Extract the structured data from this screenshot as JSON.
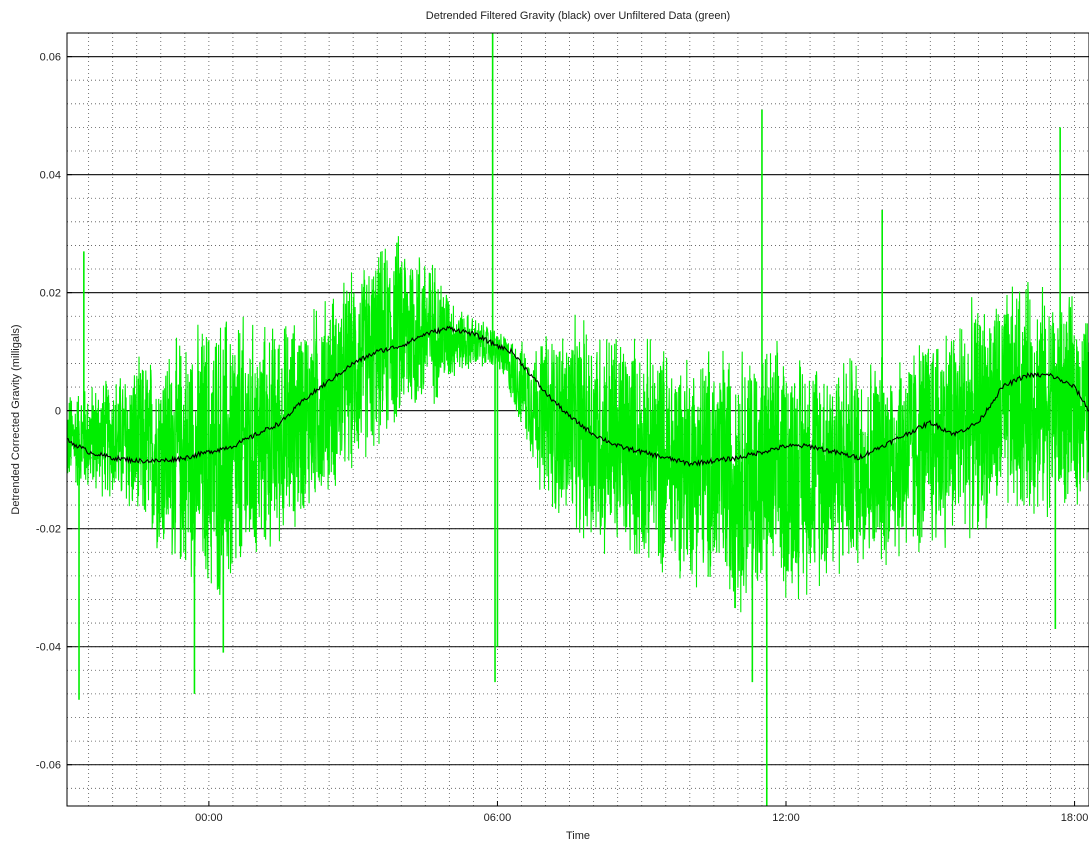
{
  "chart_data": {
    "type": "line",
    "title": "Detrended Filtered Gravity (black) over Unfiltered Data (green)",
    "xlabel": "Time",
    "ylabel": "Detrended Corrected Gravity (milligals)",
    "x_unit": "hours (relative to 00:00)",
    "xlim": [
      -2.95,
      18.3
    ],
    "ylim": [
      -0.067,
      0.064
    ],
    "xticks": [
      {
        "value": 0,
        "label": "00:00"
      },
      {
        "value": 6,
        "label": "06:00"
      },
      {
        "value": 12,
        "label": "12:00"
      },
      {
        "value": 18,
        "label": "18:00"
      }
    ],
    "yticks": [
      {
        "value": 0.06,
        "label": "0.06"
      },
      {
        "value": 0.04,
        "label": "0.04"
      },
      {
        "value": 0.02,
        "label": "0.02"
      },
      {
        "value": 0,
        "label": "0"
      },
      {
        "value": -0.02,
        "label": "-0.02"
      },
      {
        "value": -0.04,
        "label": "-0.04"
      },
      {
        "value": -0.06,
        "label": "-0.06"
      }
    ],
    "grid": true,
    "series": [
      {
        "color": "#00ee00",
        "description": "unfiltered data, high-frequency noise envelope",
        "envelope_upper": [
          [
            -2.95,
            0.004
          ],
          [
            -2,
            0.007
          ],
          [
            -1,
            0.012
          ],
          [
            0,
            0.018
          ],
          [
            0.5,
            0.02
          ],
          [
            1,
            0.016
          ],
          [
            2,
            0.018
          ],
          [
            3,
            0.025
          ],
          [
            4,
            0.032
          ],
          [
            4.6,
            0.028
          ],
          [
            5.2,
            0.018
          ],
          [
            6,
            0.014
          ],
          [
            6.6,
            0.012
          ],
          [
            7,
            0.015
          ],
          [
            8,
            0.018
          ],
          [
            9,
            0.014
          ],
          [
            10,
            0.012
          ],
          [
            11,
            0.014
          ],
          [
            12,
            0.013
          ],
          [
            13,
            0.012
          ],
          [
            14,
            0.011
          ],
          [
            15,
            0.016
          ],
          [
            16,
            0.02
          ],
          [
            17,
            0.024
          ],
          [
            18,
            0.02
          ],
          [
            18.3,
            0.018
          ]
        ],
        "envelope_lower": [
          [
            -2.95,
            -0.014
          ],
          [
            -2,
            -0.016
          ],
          [
            -1,
            -0.026
          ],
          [
            0,
            -0.034
          ],
          [
            0.5,
            -0.036
          ],
          [
            1,
            -0.028
          ],
          [
            2,
            -0.02
          ],
          [
            3,
            -0.012
          ],
          [
            4,
            -0.004
          ],
          [
            4.6,
            -0.001
          ],
          [
            5.2,
            0.006
          ],
          [
            6,
            0.007
          ],
          [
            6.6,
            -0.006
          ],
          [
            7,
            -0.018
          ],
          [
            8,
            -0.026
          ],
          [
            9,
            -0.028
          ],
          [
            10,
            -0.03
          ],
          [
            11,
            -0.036
          ],
          [
            12,
            -0.034
          ],
          [
            13,
            -0.03
          ],
          [
            14,
            -0.028
          ],
          [
            15,
            -0.026
          ],
          [
            16,
            -0.022
          ],
          [
            17,
            -0.02
          ],
          [
            18,
            -0.018
          ],
          [
            18.3,
            -0.016
          ]
        ],
        "spikes": [
          [
            -2.7,
            -0.049
          ],
          [
            -2.6,
            0.027
          ],
          [
            -0.3,
            -0.048
          ],
          [
            0.3,
            -0.041
          ],
          [
            5.9,
            0.064
          ],
          [
            6.0,
            -0.04
          ],
          [
            5.95,
            -0.046
          ],
          [
            11.3,
            -0.046
          ],
          [
            11.5,
            0.051
          ],
          [
            11.6,
            -0.067
          ],
          [
            14.0,
            0.034
          ],
          [
            17.7,
            0.048
          ],
          [
            17.6,
            -0.037
          ]
        ]
      },
      {
        "color": "#000000",
        "description": "detrended filtered gravity",
        "points": [
          [
            -2.95,
            -0.005
          ],
          [
            -2.5,
            -0.007
          ],
          [
            -2,
            -0.008
          ],
          [
            -1.5,
            -0.0085
          ],
          [
            -1,
            -0.0085
          ],
          [
            -0.5,
            -0.008
          ],
          [
            0,
            -0.007
          ],
          [
            0.5,
            -0.006
          ],
          [
            1,
            -0.004
          ],
          [
            1.5,
            -0.002
          ],
          [
            2,
            0.002
          ],
          [
            2.5,
            0.005
          ],
          [
            3,
            0.008
          ],
          [
            3.5,
            0.01
          ],
          [
            4,
            0.011
          ],
          [
            4.5,
            0.013
          ],
          [
            5,
            0.014
          ],
          [
            5.5,
            0.013
          ],
          [
            6,
            0.011
          ],
          [
            6.3,
            0.01
          ],
          [
            6.6,
            0.007
          ],
          [
            7,
            0.003
          ],
          [
            7.5,
            -0.001
          ],
          [
            8,
            -0.004
          ],
          [
            8.5,
            -0.006
          ],
          [
            9,
            -0.007
          ],
          [
            9.5,
            -0.008
          ],
          [
            10,
            -0.009
          ],
          [
            10.5,
            -0.0085
          ],
          [
            11,
            -0.008
          ],
          [
            11.5,
            -0.007
          ],
          [
            12,
            -0.006
          ],
          [
            12.5,
            -0.006
          ],
          [
            13,
            -0.007
          ],
          [
            13.5,
            -0.008
          ],
          [
            14,
            -0.006
          ],
          [
            14.5,
            -0.004
          ],
          [
            15,
            -0.002
          ],
          [
            15.5,
            -0.004
          ],
          [
            16,
            -0.002
          ],
          [
            16.5,
            0.004
          ],
          [
            17,
            0.006
          ],
          [
            17.5,
            0.006
          ],
          [
            18,
            0.004
          ],
          [
            18.3,
            0.0
          ]
        ]
      }
    ]
  }
}
